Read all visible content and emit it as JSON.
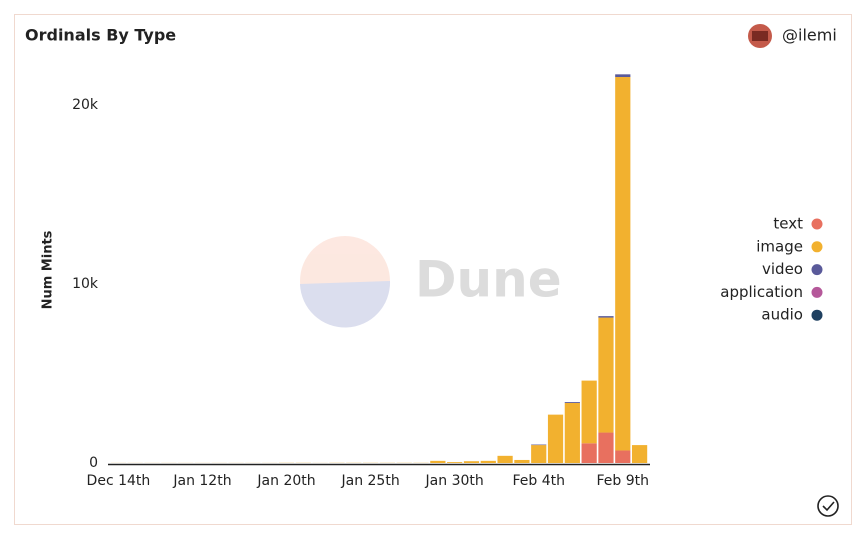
{
  "chart_data": {
    "type": "stacked-bar",
    "title": "Ordinals By Type",
    "author": "@ilemi",
    "watermark": "Dune",
    "y_label": "Num Mints",
    "categories": [
      "Dec 14th",
      null,
      null,
      null,
      null,
      "Jan 12th",
      null,
      null,
      null,
      null,
      "Jan 20th",
      null,
      null,
      null,
      null,
      "Jan 25th",
      null,
      null,
      null,
      null,
      "Jan 30th",
      null,
      null,
      null,
      null,
      "Feb 4th",
      null,
      null,
      null,
      null,
      "Feb 9th",
      null
    ],
    "series": [
      {
        "name": "text",
        "color": "#e8705f",
        "values": [
          0,
          0,
          0,
          0,
          0,
          0,
          0,
          0,
          0,
          0,
          0,
          0,
          0,
          0,
          0,
          0,
          0,
          0,
          0,
          0,
          0,
          0,
          0,
          0,
          0,
          0,
          0,
          0,
          1100,
          1700,
          700,
          0
        ]
      },
      {
        "name": "image",
        "color": "#f2b12f",
        "values": [
          5,
          5,
          5,
          5,
          5,
          5,
          5,
          5,
          5,
          5,
          10,
          10,
          5,
          10,
          10,
          10,
          10,
          10,
          10,
          120,
          50,
          100,
          120,
          400,
          170,
          1000,
          2700,
          3350,
          3500,
          6420,
          20850,
          1000
        ]
      },
      {
        "name": "video",
        "color": "#5a5a9a",
        "values": [
          0,
          0,
          0,
          0,
          0,
          0,
          0,
          0,
          0,
          0,
          0,
          0,
          0,
          0,
          0,
          0,
          0,
          0,
          0,
          0,
          0,
          0,
          0,
          0,
          0,
          30,
          0,
          50,
          0,
          80,
          150,
          0
        ]
      },
      {
        "name": "application",
        "color": "#b5589a",
        "values": [
          0,
          0,
          0,
          0,
          0,
          0,
          0,
          0,
          0,
          0,
          0,
          0,
          0,
          0,
          0,
          0,
          0,
          0,
          0,
          0,
          0,
          0,
          0,
          0,
          0,
          0,
          0,
          0,
          0,
          0,
          0,
          0
        ]
      },
      {
        "name": "audio",
        "color": "#1f4060",
        "values": [
          0,
          0,
          0,
          0,
          0,
          0,
          0,
          0,
          0,
          0,
          0,
          0,
          0,
          0,
          0,
          0,
          0,
          0,
          0,
          0,
          0,
          0,
          0,
          0,
          0,
          0,
          0,
          0,
          0,
          0,
          0,
          0
        ]
      }
    ],
    "ylim": [
      0,
      22500
    ],
    "yticks": [
      0,
      {
        "value": 10000,
        "label": "10k"
      },
      {
        "value": 20000,
        "label": "20k"
      }
    ],
    "grid": false,
    "legend": "right"
  }
}
